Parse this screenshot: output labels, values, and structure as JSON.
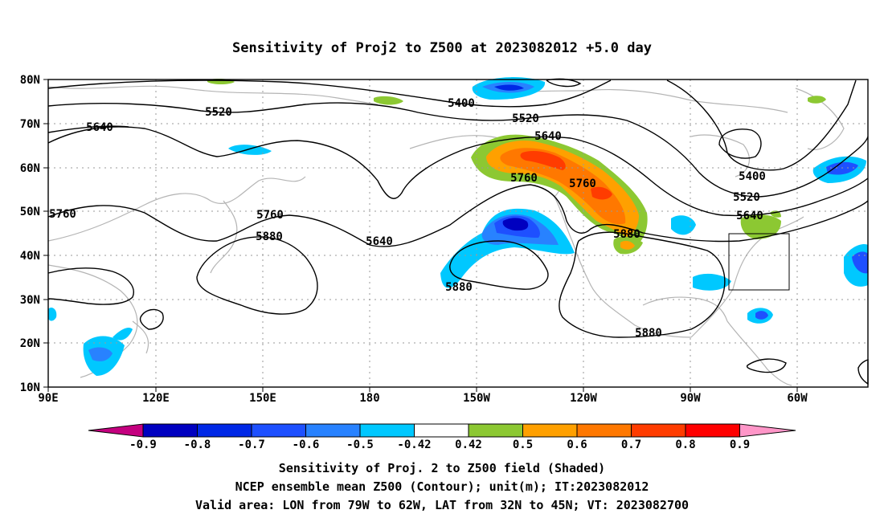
{
  "title": "Sensitivity of Proj2 to Z500 at 2023082012 +5.0 day",
  "map": {
    "lat_ticks": [
      "80N",
      "70N",
      "60N",
      "50N",
      "40N",
      "30N",
      "20N",
      "10N"
    ],
    "lon_ticks": [
      "90E",
      "120E",
      "150E",
      "180",
      "150W",
      "120W",
      "90W",
      "60W"
    ],
    "contour_labels": {
      "c5400a": "5400",
      "c5520a": "5520",
      "c5520b": "5520",
      "c5640a": "5640",
      "c5640b": "5640",
      "c5640c": "5640",
      "c5760a": "5760",
      "c5760b": "5760",
      "c5760c": "5760",
      "c5760d": "5760",
      "c5880a": "5880",
      "c5880b": "5880",
      "c5880c": "5880",
      "c5880d": "5880",
      "c5400b": "5400",
      "c5520c": "5520",
      "c5640d": "5640"
    }
  },
  "colorbar": {
    "labels": [
      "-0.9",
      "-0.8",
      "-0.7",
      "-0.6",
      "-0.5",
      "-0.42",
      "0.42",
      "0.5",
      "0.6",
      "0.7",
      "0.8",
      "0.9"
    ],
    "colors": [
      "#c4007f",
      "#0000c0",
      "#0028e6",
      "#1e50ff",
      "#2882ff",
      "#00c8ff",
      "#ffffff",
      "#8cc832",
      "#ffa000",
      "#ff7800",
      "#ff3c00",
      "#ff0000",
      "#ff96c8"
    ]
  },
  "captions": {
    "line1": "Sensitivity of Proj. 2 to Z500 field (Shaded)",
    "line2": "NCEP ensemble mean Z500 (Contour); unit(m); IT:2023082012",
    "line3": "Valid area: LON from 79W to 62W, LAT from 32N to 45N; VT: 2023082700"
  }
}
